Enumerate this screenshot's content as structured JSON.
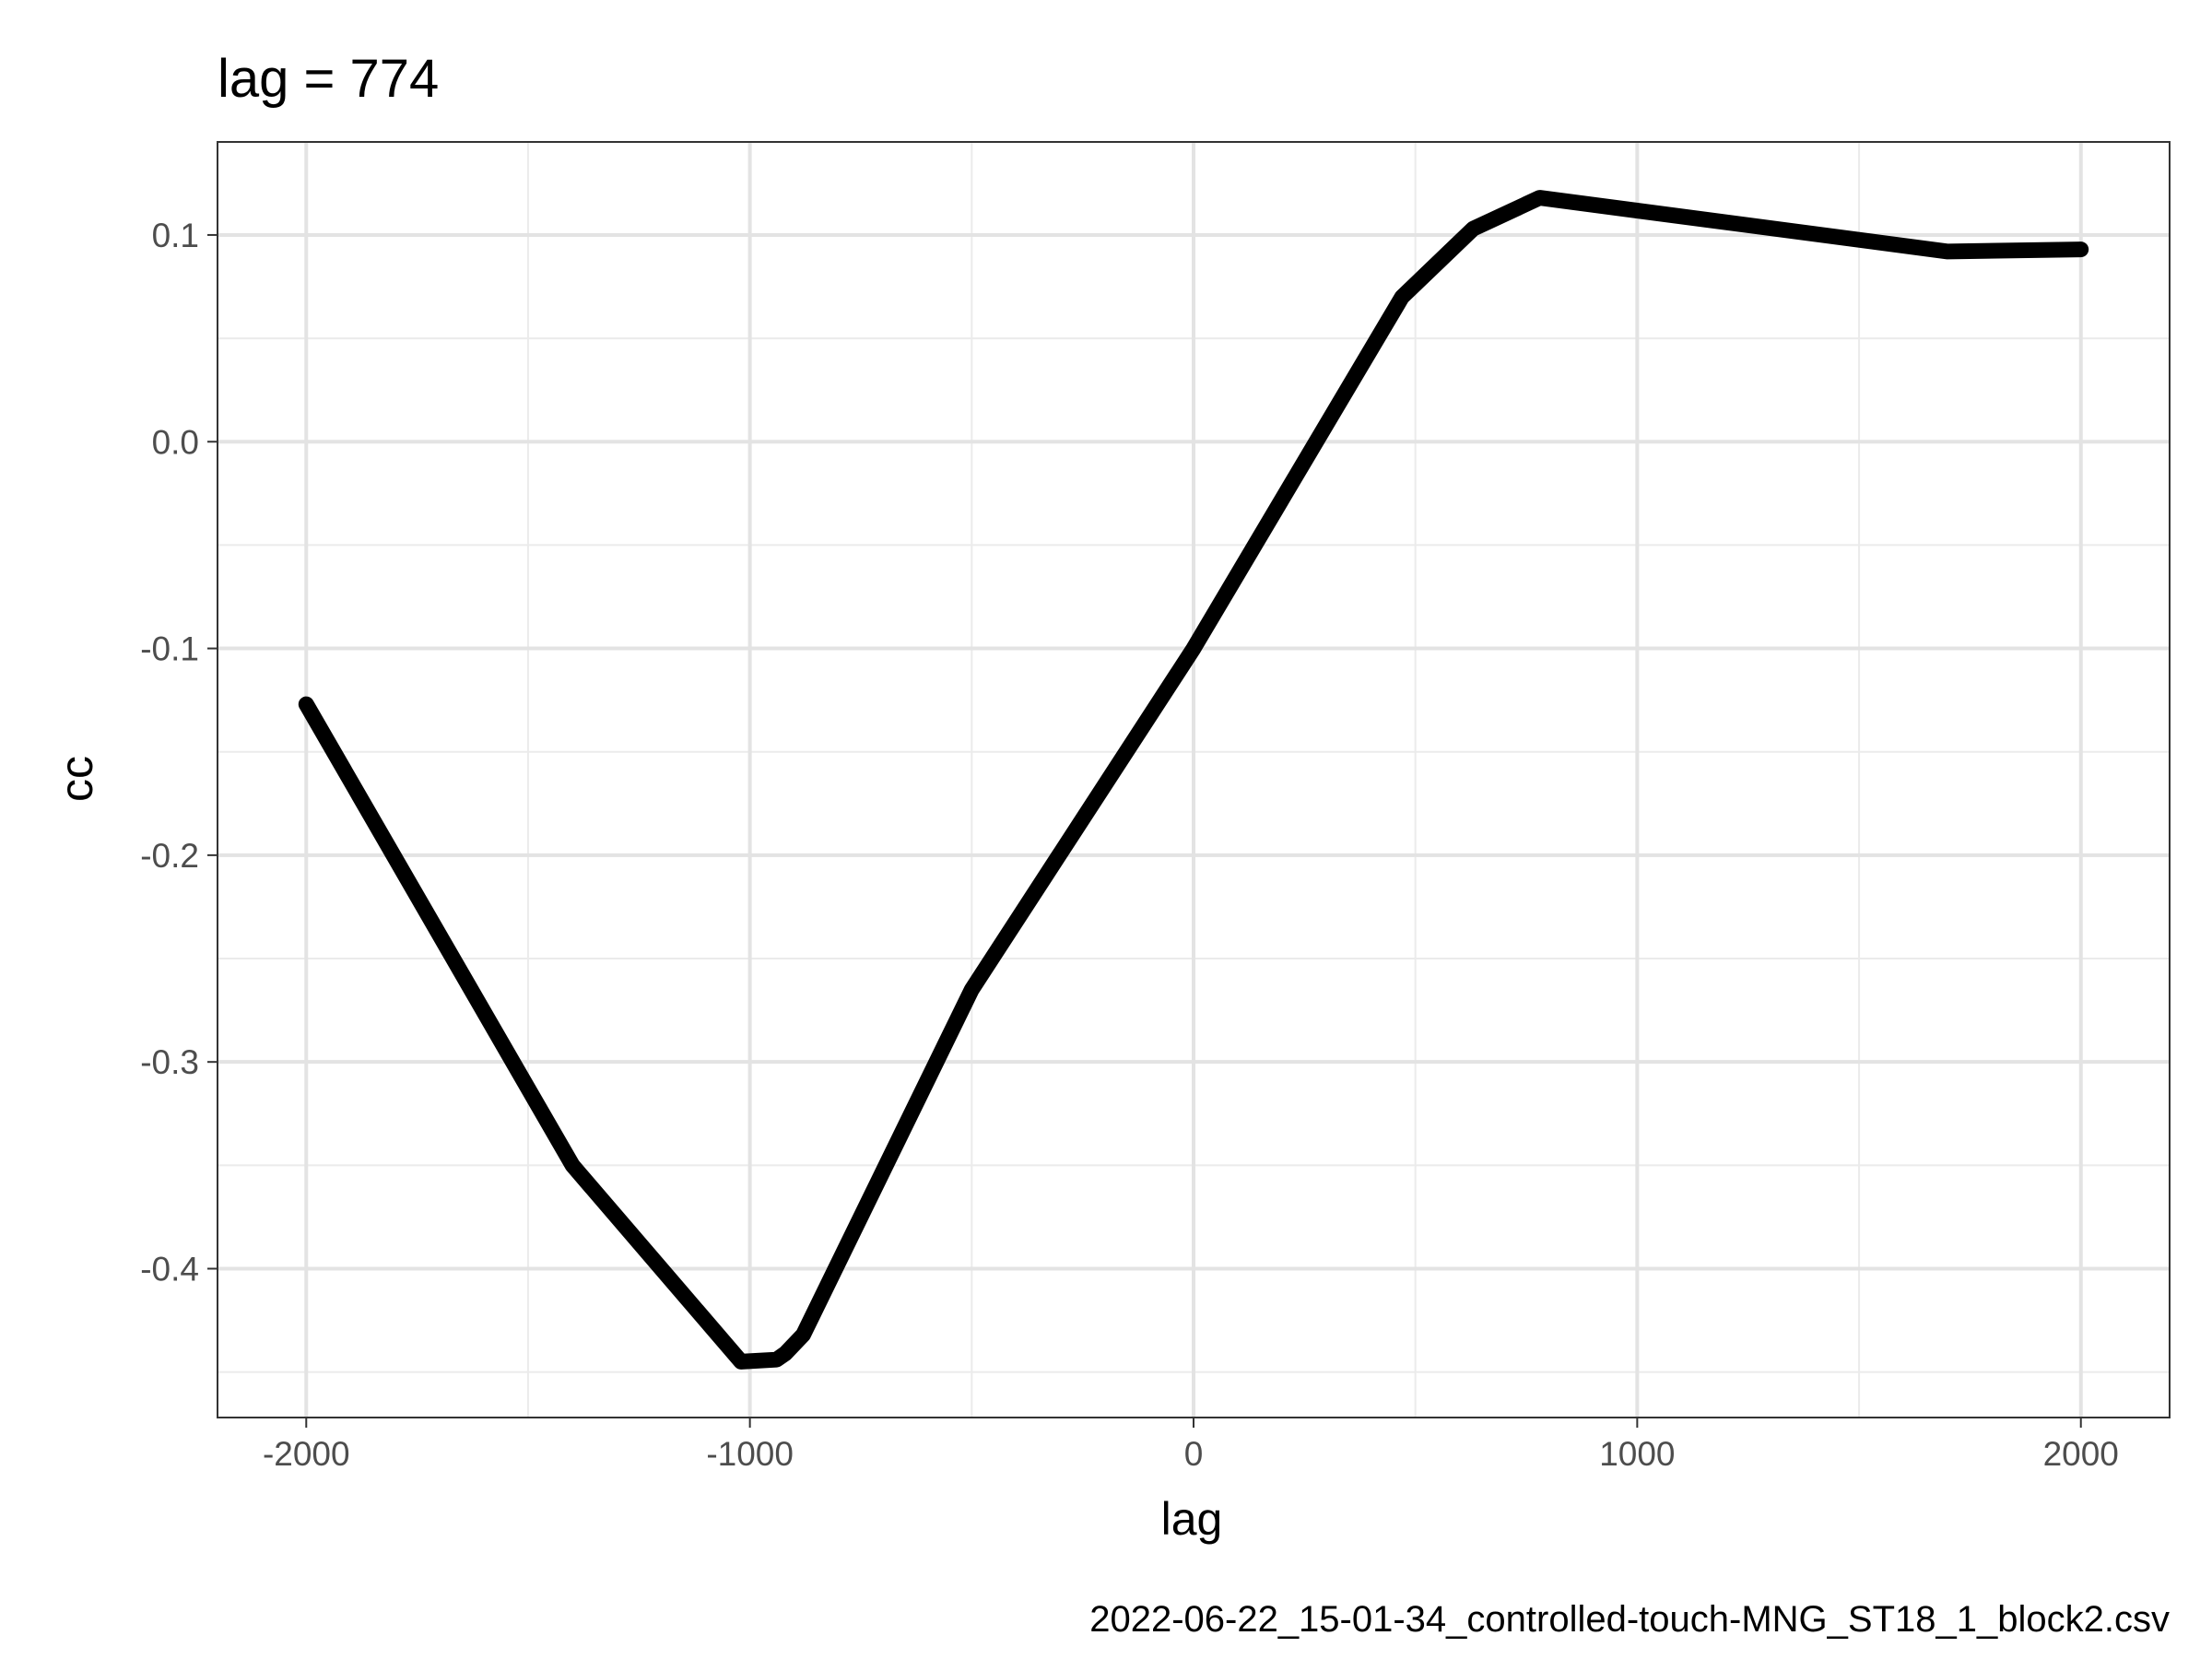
{
  "chart_data": {
    "type": "line",
    "title": "lag = 774",
    "xlabel": "lag",
    "ylabel": "cc",
    "caption": "2022-06-22_15-01-34_controlled-touch-MNG_ST18_1_block2.csv",
    "xlim": [
      -2200,
      2200
    ],
    "ylim": [
      -0.472,
      0.145
    ],
    "x_ticks": [
      -2000,
      -1000,
      0,
      1000,
      2000
    ],
    "x_tick_labels": [
      "-2000",
      "-1000",
      "0",
      "1000",
      "2000"
    ],
    "y_ticks": [
      -0.4,
      -0.3,
      -0.2,
      -0.1,
      0.0,
      0.1
    ],
    "y_tick_labels": [
      "-0.4",
      "-0.3",
      "-0.2",
      "-0.1",
      "0.0",
      "0.1"
    ],
    "grid": true,
    "series": [
      {
        "color": "#000000",
        "points": [
          [
            -2000,
            -0.127
          ],
          [
            -1400,
            -0.35
          ],
          [
            -1020,
            -0.445
          ],
          [
            -940,
            -0.444
          ],
          [
            -920,
            -0.441
          ],
          [
            -880,
            -0.432
          ],
          [
            -500,
            -0.265
          ],
          [
            0,
            -0.1
          ],
          [
            470,
            0.07
          ],
          [
            630,
            0.103
          ],
          [
            780,
            0.118
          ],
          [
            1700,
            0.092
          ],
          [
            2000,
            0.093
          ]
        ]
      }
    ]
  }
}
